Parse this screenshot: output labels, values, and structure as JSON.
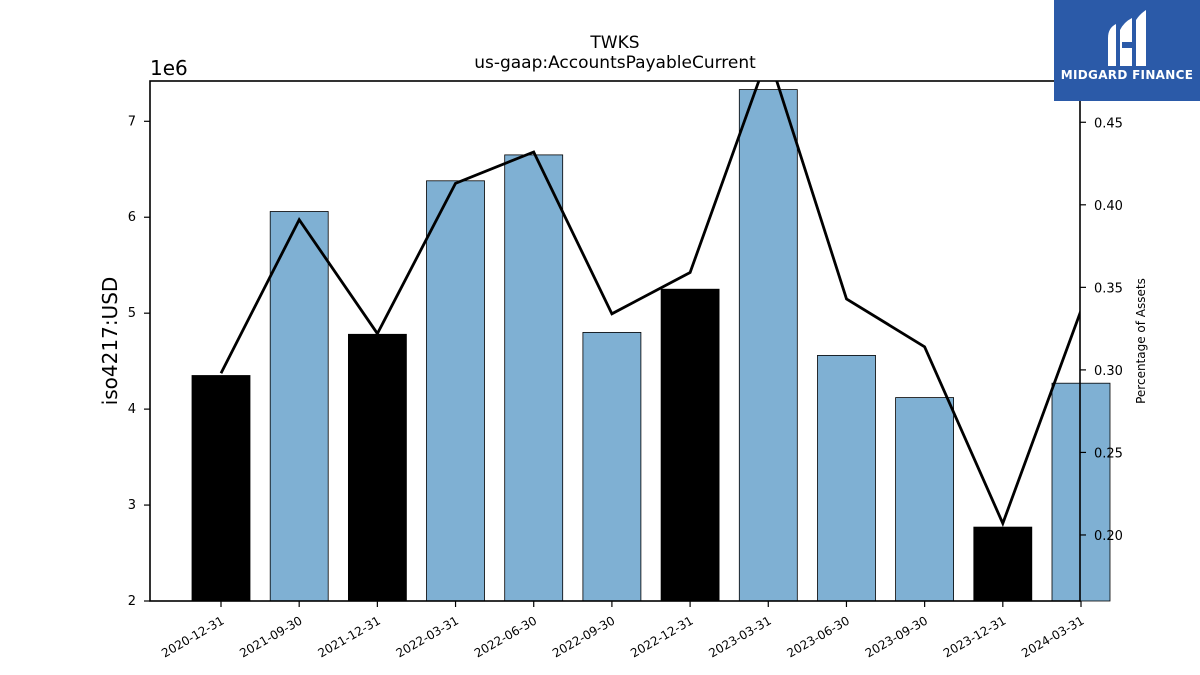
{
  "chart_data": {
    "type": "bar",
    "title": "TWKS",
    "subtitle": "us-gaap:AccountsPayableCurrent",
    "ylabel": "iso4217:USD",
    "y_scale_label": "1e6",
    "y2label": "Percentage of Assets",
    "categories": [
      "2020-12-31",
      "2021-09-30",
      "2021-12-31",
      "2022-03-31",
      "2022-06-30",
      "2022-09-30",
      "2022-12-31",
      "2023-03-31",
      "2023-06-30",
      "2023-09-30",
      "2023-12-31",
      "2024-03-31"
    ],
    "values": [
      4.35,
      6.06,
      4.78,
      6.38,
      6.65,
      4.8,
      5.25,
      7.33,
      4.56,
      4.12,
      2.77,
      4.27
    ],
    "highlighted": [
      true,
      false,
      true,
      false,
      false,
      false,
      true,
      false,
      false,
      false,
      true,
      false
    ],
    "ylim": [
      2,
      7.42
    ],
    "yticks": [
      2,
      3,
      4,
      5,
      6,
      7
    ],
    "series": [
      {
        "values": [
          0.298,
          0.391,
          0.322,
          0.413,
          0.432,
          0.334,
          0.359,
          0.491,
          0.343,
          0.314,
          0.207,
          0.336
        ]
      }
    ],
    "y2lim": [
      0.16,
      0.475
    ],
    "y2ticks": [
      "0.20",
      "0.25",
      "0.30",
      "0.35",
      "0.40",
      "0.45"
    ],
    "grid": false,
    "colors": {
      "bar": "#7fb0d3",
      "highlight": "#000000",
      "line": "#000000"
    }
  },
  "logo": {
    "text": "MIDGARD FINANCE",
    "color": "#2b5aa8"
  }
}
